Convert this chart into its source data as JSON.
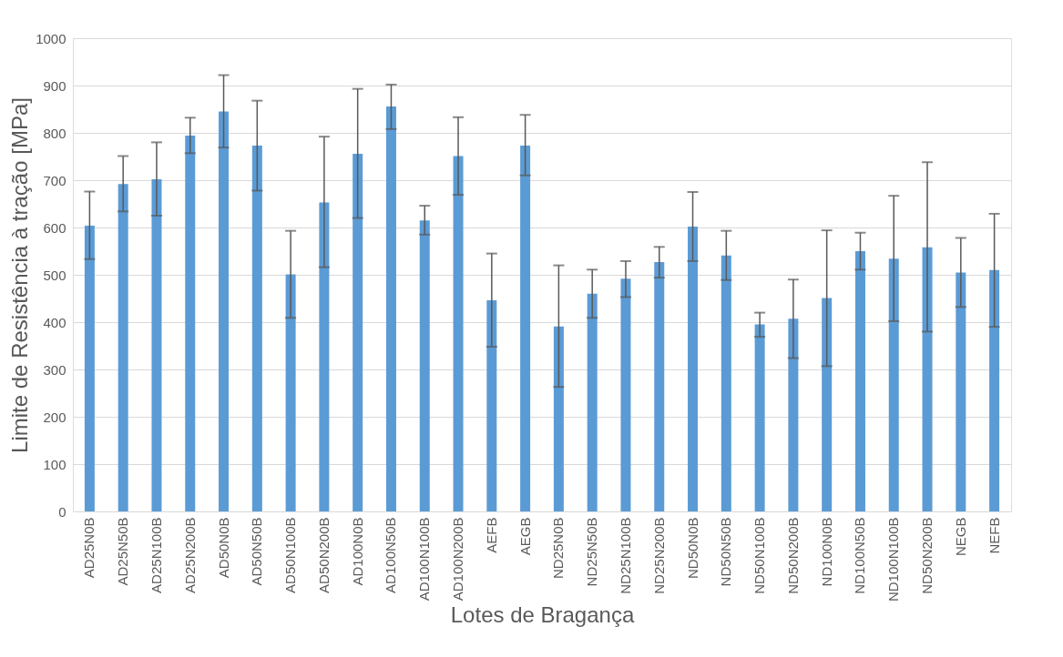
{
  "chart_data": {
    "type": "bar",
    "xlabel": "Lotes de Bragança",
    "ylabel": "Limite de Resistência à tração [MPa]",
    "categories": [
      "AD25N0B",
      "AD25N50B",
      "AD25N100B",
      "AD25N200B",
      "AD50N0B",
      "AD50N50B",
      "AD50N100B",
      "AD50N200B",
      "AD100N0B",
      "AD100N50B",
      "AD100N100B",
      "AD100N200B",
      "AEFB",
      "AEGB",
      "ND25N0B",
      "ND25N50B",
      "ND25N100B",
      "ND25N200B",
      "ND50N0B",
      "ND50N50B",
      "ND50N100B",
      "ND50N200B",
      "ND100N0B",
      "ND100N50B",
      "ND100N100B",
      "ND50N200B",
      "NEGB",
      "NEFB"
    ],
    "values": [
      604,
      692,
      702,
      794,
      845,
      773,
      501,
      653,
      756,
      856,
      615,
      751,
      446,
      773,
      391,
      460,
      492,
      527,
      602,
      541,
      395,
      407,
      451,
      550,
      534,
      558,
      505,
      510
    ],
    "errors": [
      [
        533,
        676
      ],
      [
        634,
        751
      ],
      [
        625,
        780
      ],
      [
        757,
        832
      ],
      [
        769,
        922
      ],
      [
        678,
        868
      ],
      [
        409,
        593
      ],
      [
        516,
        792
      ],
      [
        620,
        893
      ],
      [
        808,
        902
      ],
      [
        585,
        646
      ],
      [
        669,
        833
      ],
      [
        348,
        545
      ],
      [
        710,
        838
      ],
      [
        263,
        520
      ],
      [
        409,
        511
      ],
      [
        453,
        529
      ],
      [
        494,
        559
      ],
      [
        529,
        675
      ],
      [
        489,
        593
      ],
      [
        369,
        420
      ],
      [
        324,
        490
      ],
      [
        307,
        594
      ],
      [
        511,
        589
      ],
      [
        402,
        667
      ],
      [
        380,
        738
      ],
      [
        432,
        578
      ],
      [
        390,
        629
      ]
    ],
    "color": "#5b9bd5",
    "ylim": [
      0,
      1000
    ],
    "yticks": [
      0,
      100,
      200,
      300,
      400,
      500,
      600,
      700,
      800,
      900,
      1000
    ],
    "grid": "y"
  }
}
